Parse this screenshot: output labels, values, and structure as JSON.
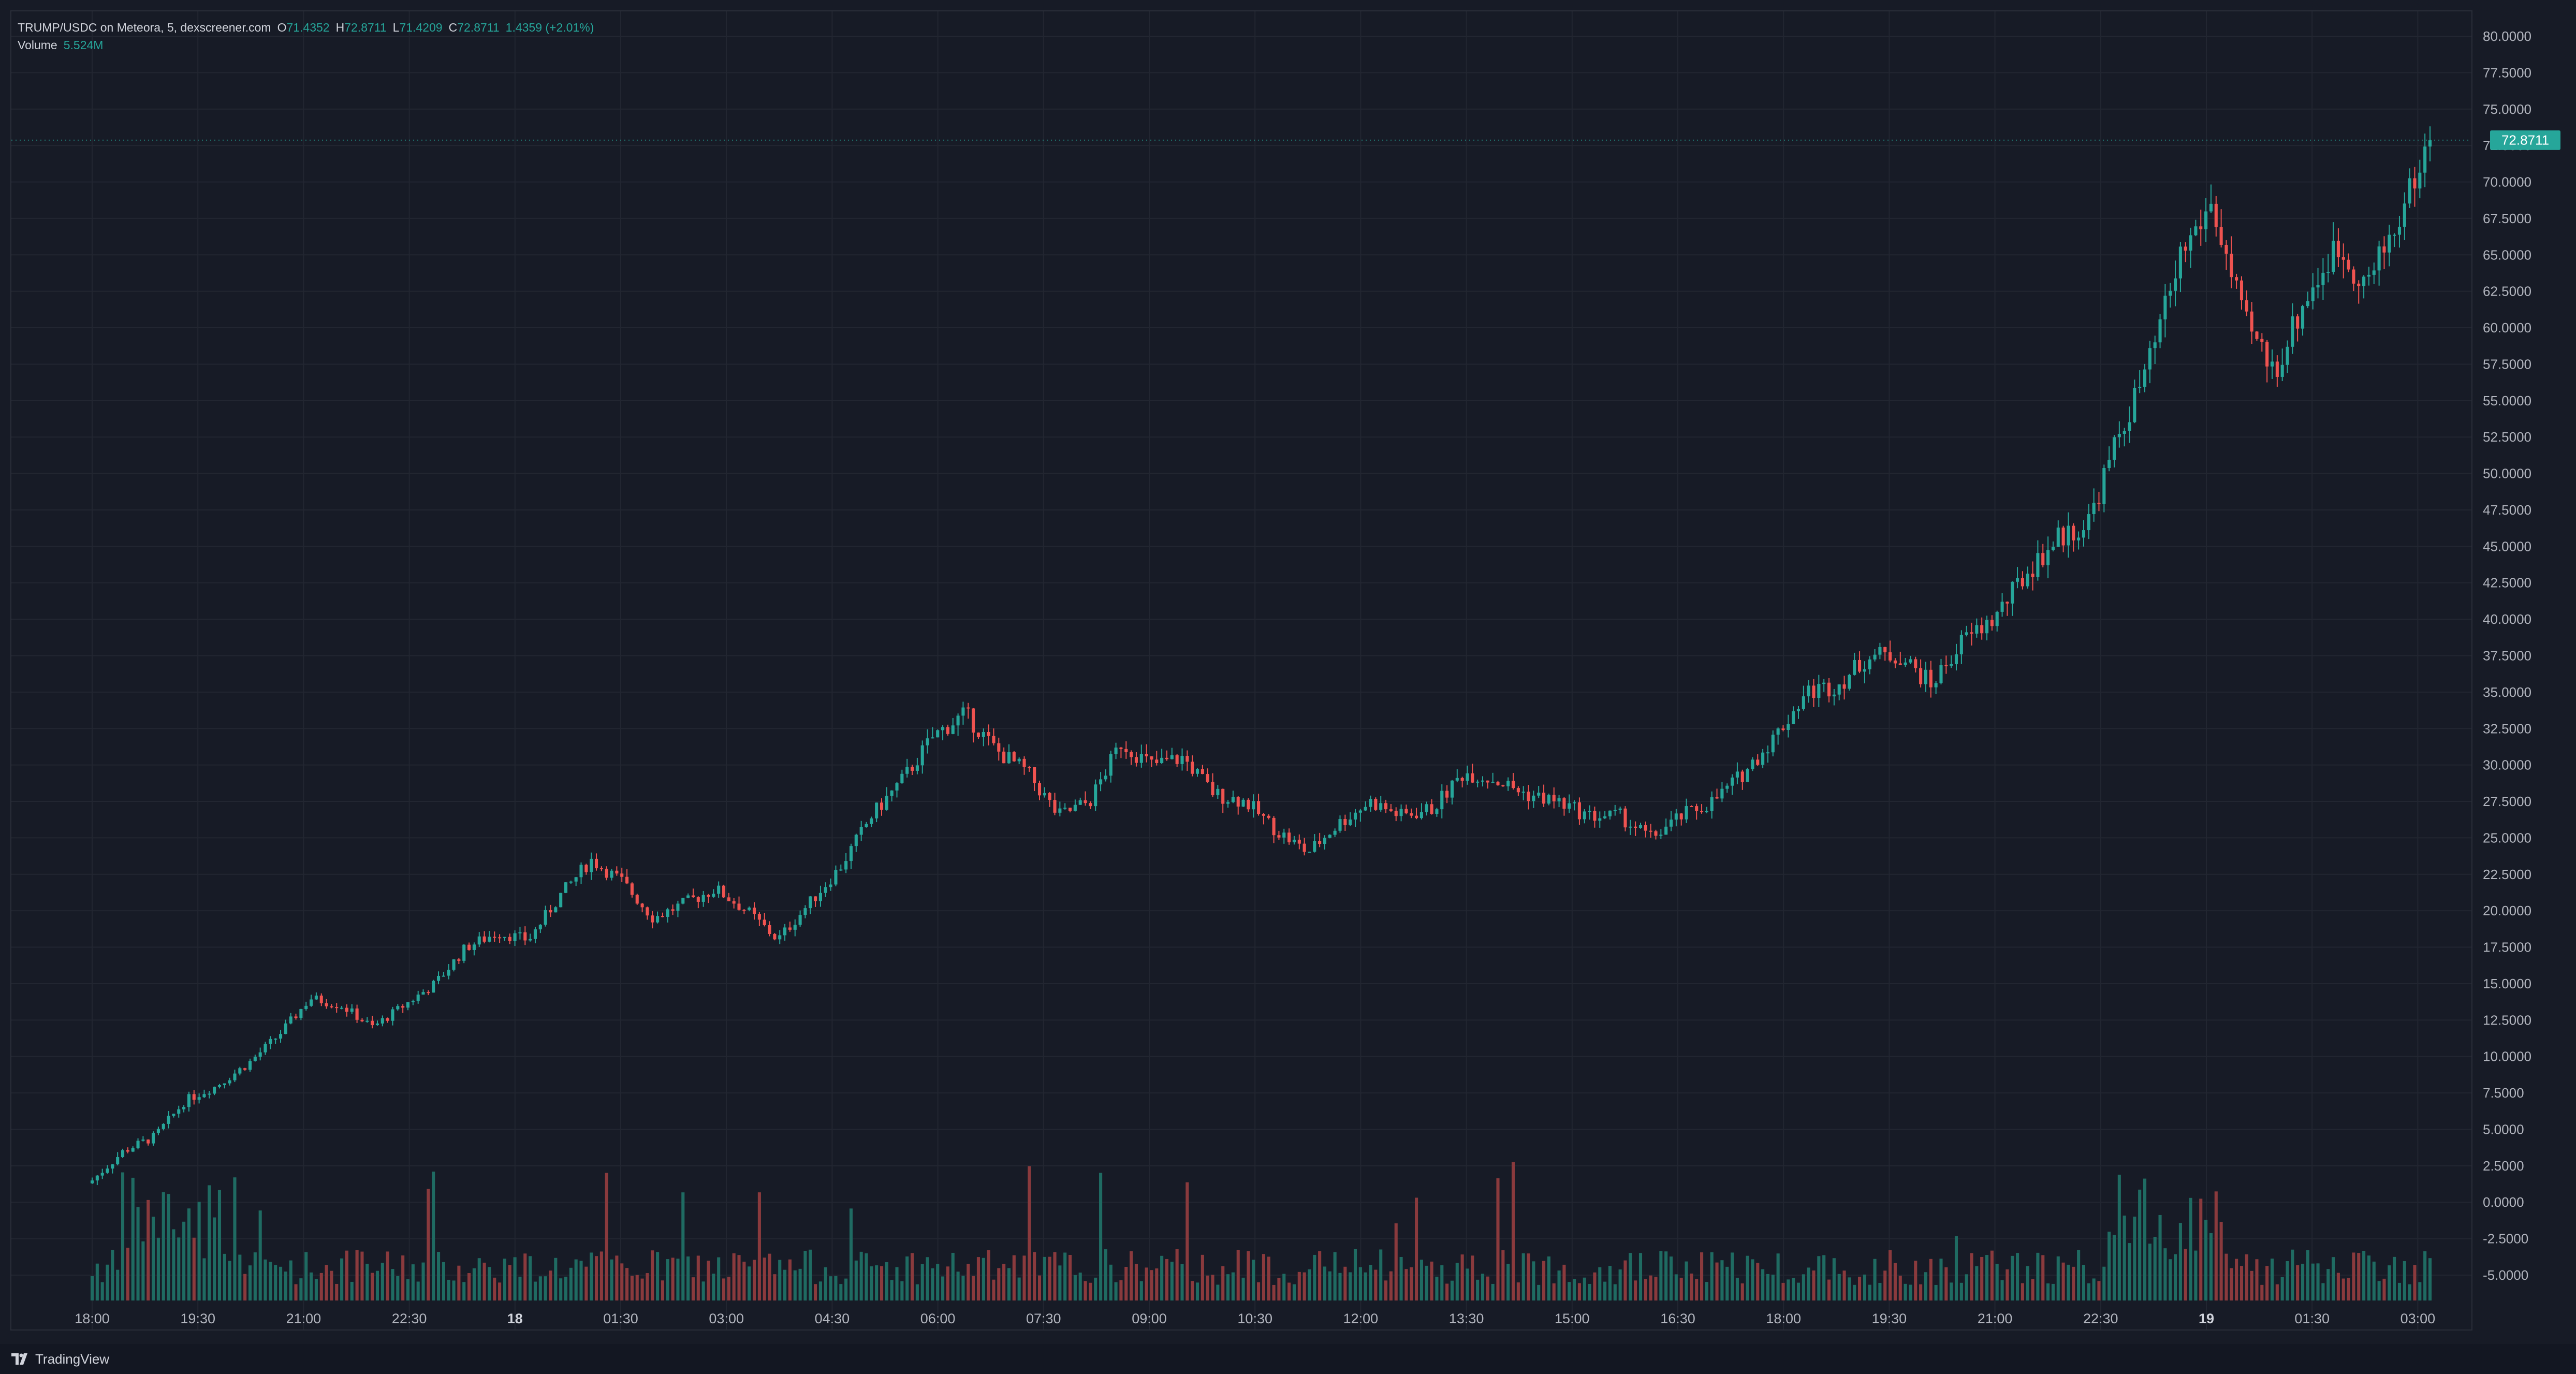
{
  "header": {
    "symbol_label": "TRUMP/USDC on Meteora, 5, dexscreener.com",
    "open_key": "O",
    "open": "71.4352",
    "high_key": "H",
    "high": "72.8711",
    "low_key": "L",
    "low": "71.4209",
    "close_key": "C",
    "close": "72.8711",
    "change": "1.4359 (+2.01%)",
    "volume_label": "Volume",
    "volume_value": "5.524M"
  },
  "footer": {
    "brand": "TradingView"
  },
  "colors": {
    "up": "#26a69a",
    "down": "#ef5350",
    "up_volume": "#1f6b62",
    "down_volume": "#8a3a3d",
    "background": "#171b26",
    "grid": "#222631",
    "text": "#b2b5be",
    "price_tag": "#26a69a"
  },
  "chart_data": {
    "type": "candlestick",
    "title": "TRUMP/USDC on Meteora, 5, dexscreener.com",
    "y_axis": {
      "position": "right",
      "ylim": [
        -7.0,
        81.5
      ],
      "ticks": [
        "80.0000",
        "77.5000",
        "75.0000",
        "72.5000",
        "70.0000",
        "67.5000",
        "65.0000",
        "62.5000",
        "60.0000",
        "57.5000",
        "55.0000",
        "52.5000",
        "50.0000",
        "47.5000",
        "45.0000",
        "42.5000",
        "40.0000",
        "37.5000",
        "35.0000",
        "32.5000",
        "30.0000",
        "27.5000",
        "25.0000",
        "22.5000",
        "20.0000",
        "17.5000",
        "15.0000",
        "12.5000",
        "10.0000",
        "7.5000",
        "5.0000",
        "2.5000",
        "0.0000",
        "-2.5000",
        "-5.0000"
      ]
    },
    "x_axis": {
      "ticks": [
        "18:00",
        "19:30",
        "21:00",
        "22:30",
        "18",
        "01:30",
        "03:00",
        "04:30",
        "06:00",
        "07:30",
        "09:00",
        "10:30",
        "12:00",
        "13:30",
        "15:00",
        "16:30",
        "18:00",
        "19:30",
        "21:00",
        "22:30",
        "19",
        "01:30",
        "03:00"
      ],
      "bold_ticks": [
        "18",
        "19"
      ]
    },
    "last_price": "72.8711",
    "grid": true,
    "close_path_series": {
      "name": "close",
      "points": [
        [
          "18:00",
          1.5
        ],
        [
          "18:45",
          3.5
        ],
        [
          "19:30",
          4.5
        ],
        [
          "20:15",
          7.0
        ],
        [
          "21:00",
          8.0
        ],
        [
          "21:45",
          9.5
        ],
        [
          "22:00",
          11.5
        ],
        [
          "22:30",
          14.0
        ],
        [
          "23:00",
          13.5
        ],
        [
          "23:30",
          12.0
        ],
        [
          "00:00",
          13.5
        ],
        [
          "00:30",
          15.0
        ],
        [
          "01:00",
          17.5
        ],
        [
          "01:30",
          18.5
        ],
        [
          "02:00",
          18.0
        ],
        [
          "02:30",
          21.0
        ],
        [
          "02:45",
          23.5
        ],
        [
          "03:00",
          22.0
        ],
        [
          "03:30",
          19.5
        ],
        [
          "04:00",
          20.5
        ],
        [
          "04:30",
          21.5
        ],
        [
          "05:00",
          20.0
        ],
        [
          "05:15",
          18.0
        ],
        [
          "05:45",
          20.5
        ],
        [
          "06:15",
          23.0
        ],
        [
          "06:45",
          26.5
        ],
        [
          "07:15",
          29.0
        ],
        [
          "07:45",
          32.0
        ],
        [
          "08:00",
          33.5
        ],
        [
          "08:15",
          31.0
        ],
        [
          "08:30",
          29.5
        ],
        [
          "09:00",
          26.5
        ],
        [
          "09:30",
          27.5
        ],
        [
          "10:00",
          31.5
        ],
        [
          "10:30",
          30.0
        ],
        [
          "11:00",
          30.5
        ],
        [
          "11:15",
          28.0
        ],
        [
          "11:45",
          27.5
        ],
        [
          "12:15",
          25.5
        ],
        [
          "12:45",
          24.0
        ],
        [
          "13:15",
          26.0
        ],
        [
          "13:45",
          27.5
        ],
        [
          "14:15",
          26.5
        ],
        [
          "14:45",
          27.0
        ],
        [
          "15:15",
          29.5
        ],
        [
          "15:45",
          29.0
        ],
        [
          "16:15",
          28.0
        ],
        [
          "16:45",
          27.5
        ],
        [
          "17:15",
          26.5
        ],
        [
          "17:45",
          26.5
        ],
        [
          "18:00",
          25.0
        ],
        [
          "18:30",
          26.5
        ],
        [
          "19:00",
          27.5
        ],
        [
          "19:30",
          29.5
        ],
        [
          "20:00",
          32.0
        ],
        [
          "20:15",
          35.0
        ],
        [
          "20:45",
          35.5
        ],
        [
          "21:15",
          37.5
        ],
        [
          "21:45",
          37.5
        ],
        [
          "22:15",
          35.5
        ],
        [
          "22:45",
          38.5
        ],
        [
          "23:15",
          40.0
        ],
        [
          "23:45",
          43.0
        ],
        [
          "00:15",
          45.5
        ],
        [
          "00:45",
          46.5
        ],
        [
          "01:00",
          52.5
        ],
        [
          "01:15",
          57.5
        ],
        [
          "01:30",
          65.0
        ],
        [
          "01:45",
          68.5
        ],
        [
          "02:00",
          60.5
        ],
        [
          "02:15",
          57.0
        ],
        [
          "02:30",
          62.0
        ],
        [
          "02:45",
          65.5
        ],
        [
          "03:00",
          63.0
        ],
        [
          "03:15",
          67.5
        ],
        [
          "03:30",
          72.8711
        ]
      ]
    },
    "volume_series": {
      "name": "Volume",
      "note": "volume shown as bars along the bottom of the chart",
      "last_value": "5.524M"
    }
  }
}
